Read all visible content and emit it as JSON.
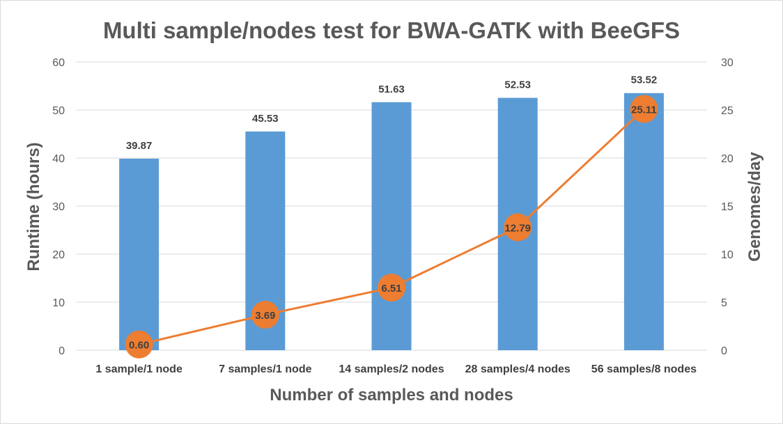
{
  "chart_data": {
    "type": "bar",
    "title": "Multi sample/nodes test for BWA-GATK with BeeGFS",
    "xlabel": "Number of samples and nodes",
    "ylabel": "Runtime (hours)",
    "y2label": "Genomes/day",
    "ylim": [
      0,
      60
    ],
    "y2lim": [
      0,
      30
    ],
    "yticks": [
      0,
      10,
      20,
      30,
      40,
      50,
      60
    ],
    "y2ticks": [
      0,
      5,
      10,
      15,
      20,
      25,
      30
    ],
    "grid": true,
    "categories": [
      "1 sample/1 node",
      "7 samples/1 node",
      "14 samples/2 nodes",
      "28 samples/4 nodes",
      "56 samples/8 nodes"
    ],
    "series": [
      {
        "type": "bar",
        "axis": "left",
        "color": "#5b9bd5",
        "values": [
          39.87,
          45.53,
          51.63,
          52.53,
          53.52
        ],
        "labels": [
          "39.87",
          "45.53",
          "51.63",
          "52.53",
          "53.52"
        ]
      },
      {
        "type": "line",
        "axis": "right",
        "color": "#ed7d31",
        "values": [
          0.6,
          3.69,
          6.51,
          12.79,
          25.11
        ],
        "labels": [
          "0.60",
          "3.69",
          "6.51",
          "12.79",
          "25.11"
        ]
      }
    ]
  }
}
